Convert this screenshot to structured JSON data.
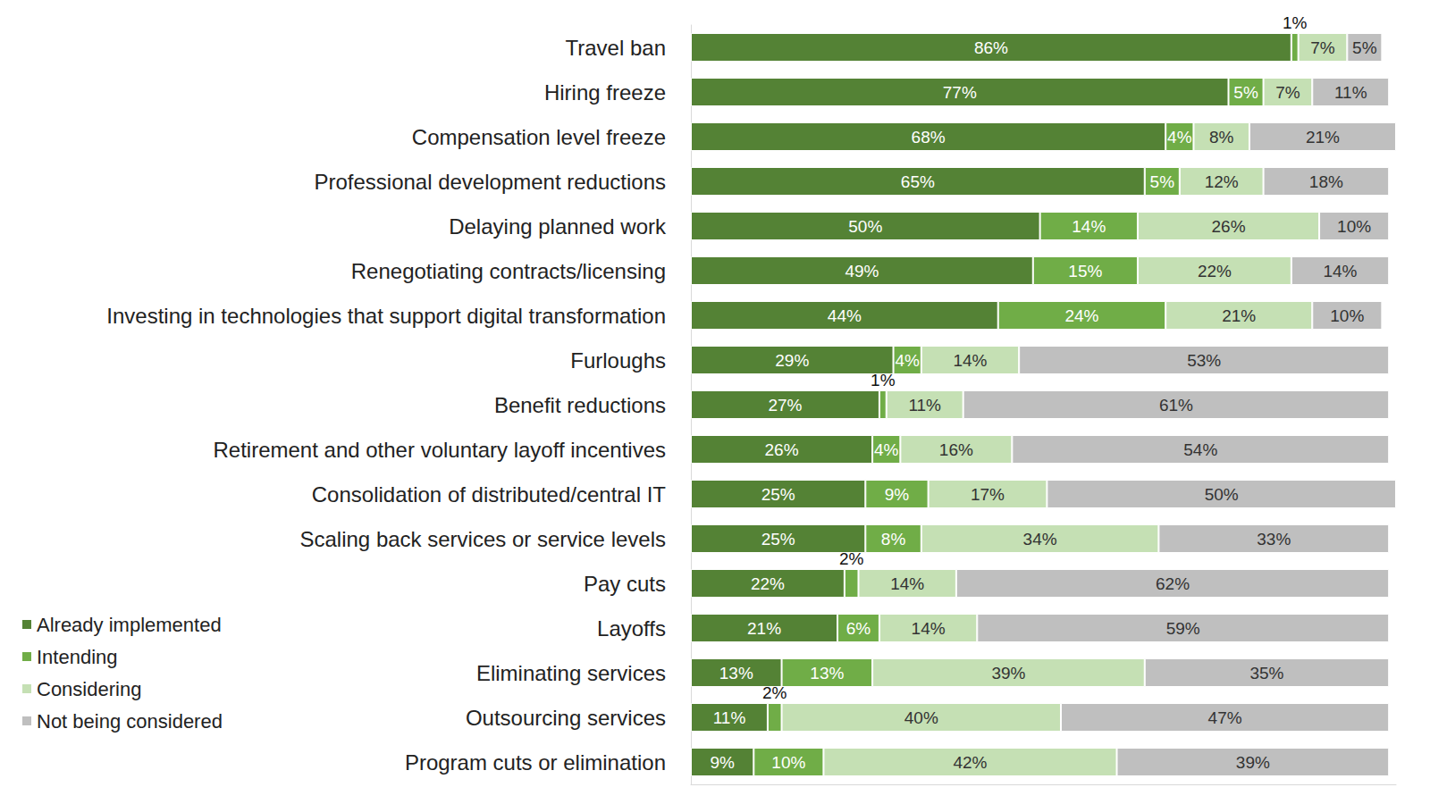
{
  "chart_data": {
    "type": "bar",
    "orientation": "horizontal",
    "stacked": true,
    "data_labels": true,
    "tick_labels": "y",
    "legend": "bottom-left",
    "xlim": [
      0,
      101
    ],
    "categories": [
      "Travel ban",
      "Hiring freeze",
      "Compensation level freeze",
      "Professional development reductions",
      "Delaying planned work",
      "Renegotiating contracts/licensing",
      "Investing in technologies that support digital transformation",
      "Furloughs",
      "Benefit reductions",
      "Retirement and other voluntary layoff incentives",
      "Consolidation of distributed/central IT",
      "Scaling back services or service levels",
      "Pay cuts",
      "Layoffs",
      "Eliminating services",
      "Outsourcing services",
      "Program cuts or elimination"
    ],
    "series": [
      {
        "name": "Already implemented",
        "color": "#548235",
        "values": [
          86,
          77,
          68,
          65,
          50,
          49,
          44,
          29,
          27,
          26,
          25,
          25,
          22,
          21,
          13,
          11,
          9
        ],
        "value_labels": [
          "86%",
          "77%",
          "68%",
          "65%",
          "50%",
          "49%",
          "44%",
          "29%",
          "27%",
          "26%",
          "25%",
          "25%",
          "22%",
          "21%",
          "13%",
          "11%",
          "9%"
        ]
      },
      {
        "name": "Intending",
        "color": "#70ad47",
        "values": [
          1,
          5,
          4,
          5,
          14,
          15,
          24,
          4,
          1,
          4,
          9,
          8,
          2,
          6,
          13,
          2,
          10
        ],
        "value_labels": [
          "1%",
          "5%",
          "4%",
          "5%",
          "14%",
          "15%",
          "24%",
          "4%",
          "1%",
          "4%",
          "9%",
          "8%",
          "2%",
          "6%",
          "13%",
          "2%",
          "10%"
        ]
      },
      {
        "name": "Considering",
        "color": "#c5e0b4",
        "values": [
          7,
          7,
          8,
          12,
          26,
          22,
          21,
          14,
          11,
          16,
          17,
          34,
          14,
          14,
          39,
          40,
          42
        ],
        "value_labels": [
          "7%",
          "7%",
          "8%",
          "12%",
          "26%",
          "22%",
          "21%",
          "14%",
          "11%",
          "16%",
          "17%",
          "34%",
          "14%",
          "14%",
          "39%",
          "40%",
          "42%"
        ]
      },
      {
        "name": "Not being considered",
        "color": "#bfbfbf",
        "values": [
          5,
          11,
          21,
          18,
          10,
          14,
          10,
          53,
          61,
          54,
          50,
          33,
          62,
          59,
          35,
          47,
          39
        ],
        "value_labels": [
          "5%",
          "11%",
          "21%",
          "18%",
          "10%",
          "14%",
          "10%",
          "53%",
          "61%",
          "54%",
          "50%",
          "33%",
          "62%",
          "59%",
          "35%",
          "47%",
          "39%"
        ]
      }
    ]
  }
}
